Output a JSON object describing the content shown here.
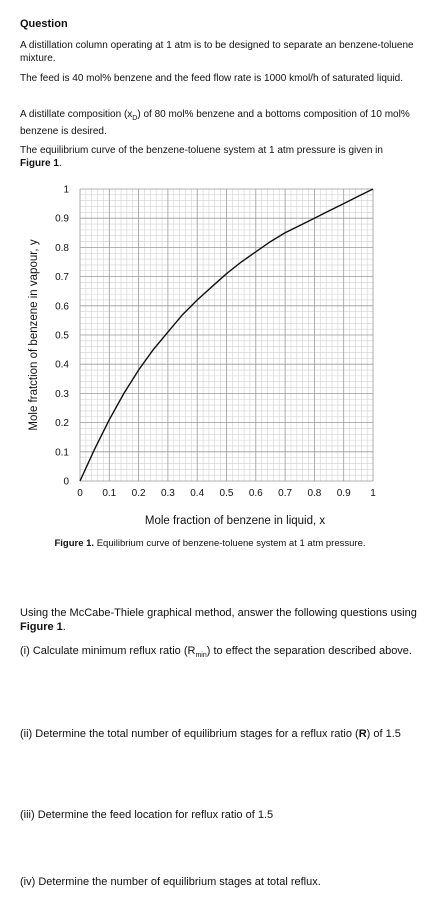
{
  "heading": "Question",
  "problem": {
    "p1": "A distillation column operating at 1 atm is to be designed to separate an benzene-toluene mixture.",
    "p2": "The feed is 40 mol% benzene and the feed flow rate is 1000 kmol/h of saturated liquid.",
    "p3_pre": "A distillate composition (x",
    "p3_sub": "D",
    "p3_post": ") of 80 mol% benzene and a bottoms composition of 10 mol% benzene is desired.",
    "p4_pre": "The equilibrium curve of the benzene-toluene system at 1 atm pressure is given in ",
    "p4_bold": "Figure 1",
    "p4_post": "."
  },
  "figure": {
    "caption_label": "Figure 1.",
    "caption_text": " Equilibrium curve of benzene-toluene system at 1 atm pressure."
  },
  "chart_data": {
    "type": "line",
    "xlabel": "Mole fraction of benzene in liquid, x",
    "ylabel": "Mole fratction of benzene in vapour, y",
    "xlim": [
      0,
      1
    ],
    "ylim": [
      0,
      1
    ],
    "grid": true,
    "x_ticks": [
      "0",
      "0.1",
      "0.2",
      "0.3",
      "0.4",
      "0.5",
      "0.6",
      "0.7",
      "0.8",
      "0.9",
      "1"
    ],
    "y_ticks": [
      "0",
      "0.1",
      "0.2",
      "0.3",
      "0.4",
      "0.5",
      "0.6",
      "0.7",
      "0.8",
      "0.9",
      "1"
    ],
    "series": [
      {
        "x": [
          0,
          0.05,
          0.1,
          0.15,
          0.2,
          0.25,
          0.3,
          0.35,
          0.4,
          0.45,
          0.5,
          0.55,
          0.6,
          0.65,
          0.7,
          0.75,
          0.8,
          0.85,
          0.9,
          0.95,
          1
        ],
        "y": [
          0,
          0.11,
          0.21,
          0.3,
          0.38,
          0.45,
          0.51,
          0.57,
          0.62,
          0.665,
          0.71,
          0.75,
          0.785,
          0.82,
          0.85,
          0.875,
          0.9,
          0.925,
          0.95,
          0.975,
          1
        ]
      }
    ]
  },
  "questions": {
    "intro_pre": "Using the McCabe-Thiele graphical method, answer the following questions using ",
    "intro_bold": "Figure 1",
    "intro_post": ".",
    "q1_pre": "(i) Calculate minimum reflux ratio (R",
    "q1_sub": "min",
    "q1_post": ") to effect the separation described above.",
    "q2_pre": "(ii) Determine the total number of equilibrium stages for a reflux ratio (",
    "q2_bold": "R",
    "q2_post": ") of 1.5",
    "q3": "(iii) Determine the feed location for reflux ratio of 1.5",
    "q4": "(iv) Determine the number of equilibrium stages at total reflux."
  }
}
